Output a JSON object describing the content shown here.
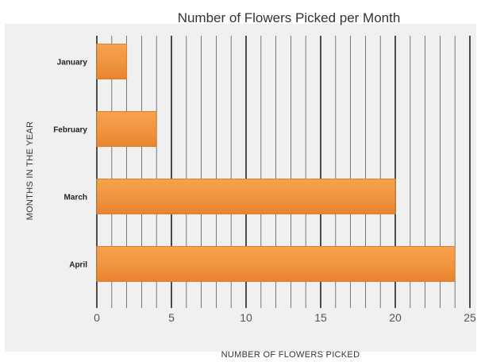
{
  "chart_data": {
    "type": "bar",
    "orientation": "horizontal",
    "title": "Number of Flowers Picked per Month",
    "xlabel": "NUMBER OF FLOWERS PICKED",
    "ylabel": "MONTHS IN THE YEAR",
    "categories": [
      "January",
      "February",
      "March",
      "April"
    ],
    "values": [
      2,
      4,
      20,
      24
    ],
    "xlim": [
      0,
      25
    ],
    "xticks": [
      "0",
      "5",
      "10",
      "15",
      "20",
      "25"
    ],
    "grid": true,
    "legend": "none",
    "bar_color": "#f0953f",
    "bar_edge_color": "#d97f2e",
    "background_color": "#f0f0f0",
    "major_grid_color": "#222222",
    "minor_grid_color": "#5a5a5a"
  }
}
